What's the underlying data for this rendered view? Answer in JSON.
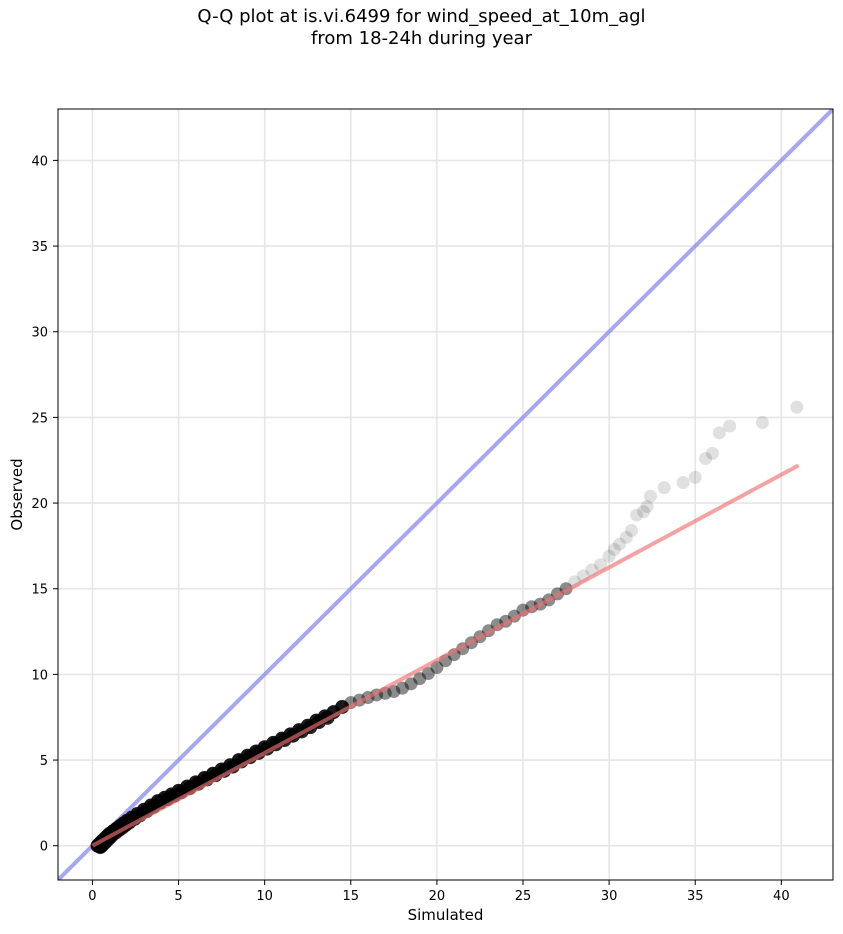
{
  "title": {
    "line1": "Q-Q plot at is.vi.6499 for wind_speed_at_10m_agl",
    "line2": "from 18-24h during year"
  },
  "chart_data": {
    "type": "scatter",
    "xlabel": "Simulated",
    "ylabel": "Observed",
    "xlim": [
      -2,
      43
    ],
    "ylim": [
      -2,
      43
    ],
    "x_ticks": [
      0,
      5,
      10,
      15,
      20,
      25,
      30,
      35,
      40
    ],
    "y_ticks": [
      0,
      5,
      10,
      15,
      20,
      25,
      30,
      35,
      40
    ],
    "grid": true,
    "legend": "none",
    "colors": {
      "points": "#000000",
      "identity_line": "#8080ee",
      "fit_line": "#f07070",
      "grid": "#e6e6e6"
    },
    "identity_line": {
      "x": [
        -2,
        43
      ],
      "y": [
        -2,
        43
      ]
    },
    "fit_line": {
      "x": [
        0,
        41
      ],
      "y": [
        0.0,
        22.2
      ]
    },
    "series": [
      {
        "points": [
          [
            0.3,
            0.0
          ],
          [
            0.35,
            0.05
          ],
          [
            0.4,
            0.1
          ],
          [
            0.45,
            0.15
          ],
          [
            0.5,
            0.2
          ],
          [
            0.55,
            0.25
          ],
          [
            0.6,
            0.3
          ],
          [
            0.7,
            0.4
          ],
          [
            0.8,
            0.5
          ],
          [
            0.9,
            0.6
          ],
          [
            1.0,
            0.7
          ],
          [
            1.2,
            0.85
          ],
          [
            1.4,
            1.0
          ],
          [
            1.6,
            1.15
          ],
          [
            1.8,
            1.3
          ],
          [
            2.0,
            1.45
          ],
          [
            2.3,
            1.65
          ],
          [
            2.6,
            1.85
          ],
          [
            3.0,
            2.1
          ],
          [
            3.4,
            2.35
          ],
          [
            3.8,
            2.6
          ],
          [
            4.2,
            2.8
          ],
          [
            4.6,
            3.0
          ],
          [
            5.0,
            3.2
          ],
          [
            5.5,
            3.45
          ],
          [
            6.0,
            3.7
          ],
          [
            6.5,
            3.95
          ],
          [
            7.0,
            4.2
          ],
          [
            7.5,
            4.45
          ],
          [
            8.0,
            4.7
          ],
          [
            8.5,
            5.0
          ],
          [
            9.0,
            5.25
          ],
          [
            9.5,
            5.5
          ],
          [
            10.0,
            5.75
          ],
          [
            10.5,
            6.0
          ],
          [
            11.0,
            6.25
          ],
          [
            11.5,
            6.5
          ],
          [
            12.0,
            6.75
          ],
          [
            12.5,
            7.0
          ],
          [
            13.0,
            7.3
          ],
          [
            13.5,
            7.55
          ],
          [
            14.0,
            7.8
          ],
          [
            14.5,
            8.1
          ],
          [
            15.0,
            8.35
          ],
          [
            15.5,
            8.5
          ],
          [
            16.0,
            8.65
          ],
          [
            16.5,
            8.8
          ],
          [
            17.0,
            8.9
          ],
          [
            17.5,
            9.0
          ],
          [
            18.0,
            9.2
          ],
          [
            18.5,
            9.45
          ],
          [
            19.0,
            9.75
          ],
          [
            19.5,
            10.05
          ],
          [
            20.0,
            10.4
          ],
          [
            20.5,
            10.8
          ],
          [
            21.0,
            11.15
          ],
          [
            21.5,
            11.5
          ],
          [
            22.0,
            11.85
          ],
          [
            22.5,
            12.2
          ],
          [
            23.0,
            12.55
          ],
          [
            23.5,
            12.9
          ],
          [
            24.0,
            13.1
          ],
          [
            24.5,
            13.4
          ],
          [
            25.0,
            13.75
          ],
          [
            25.5,
            13.95
          ],
          [
            26.0,
            14.1
          ],
          [
            26.5,
            14.35
          ],
          [
            27.0,
            14.7
          ],
          [
            27.5,
            15.0
          ],
          [
            28.0,
            15.4
          ],
          [
            28.5,
            15.75
          ],
          [
            29.0,
            16.1
          ],
          [
            29.5,
            16.4
          ],
          [
            30.0,
            16.9
          ],
          [
            30.3,
            17.3
          ],
          [
            30.6,
            17.6
          ],
          [
            31.0,
            18.0
          ],
          [
            31.3,
            18.4
          ],
          [
            31.6,
            19.3
          ],
          [
            32.0,
            19.5
          ],
          [
            32.2,
            19.8
          ],
          [
            32.4,
            20.4
          ],
          [
            33.2,
            20.9
          ],
          [
            34.3,
            21.2
          ],
          [
            35.0,
            21.5
          ],
          [
            35.6,
            22.6
          ],
          [
            36.0,
            22.9
          ],
          [
            36.4,
            24.1
          ],
          [
            37.0,
            24.5
          ],
          [
            38.9,
            24.7
          ],
          [
            40.9,
            25.6
          ]
        ]
      }
    ]
  }
}
